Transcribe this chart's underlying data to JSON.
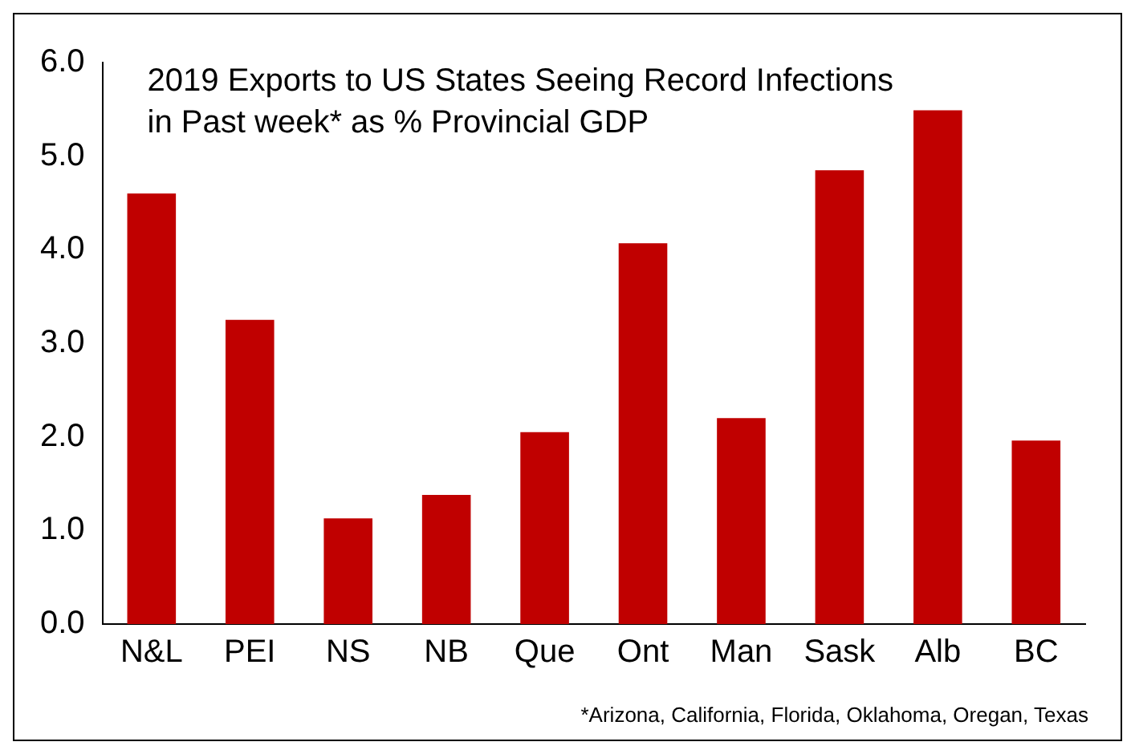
{
  "chart_data": {
    "type": "bar",
    "title": "2019 Exports to US States Seeing Record Infections\nin Past week* as % Provincial GDP",
    "categories": [
      "N&L",
      "PEI",
      "NS",
      "NB",
      "Que",
      "Ont",
      "Man",
      "Sask",
      "Alb",
      "BC"
    ],
    "values": [
      4.6,
      3.25,
      1.13,
      1.38,
      2.05,
      4.07,
      2.2,
      4.85,
      5.49,
      1.96
    ],
    "color": "#c00000",
    "ylim": [
      0,
      6
    ],
    "yticks": [
      {
        "value": 0,
        "label": "0.0"
      },
      {
        "value": 1,
        "label": "1.0"
      },
      {
        "value": 2,
        "label": "2.0"
      },
      {
        "value": 3,
        "label": "3.0"
      },
      {
        "value": 4,
        "label": "4.0"
      },
      {
        "value": 5,
        "label": "5.0"
      },
      {
        "value": 6,
        "label": "6.0"
      }
    ],
    "grid": false,
    "legend": false,
    "annotations": [
      "*Arizona, California, Florida, Oklahoma, Oregan, Texas"
    ]
  }
}
